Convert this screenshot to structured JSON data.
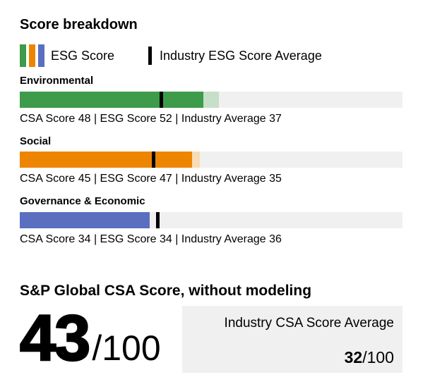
{
  "title": "Score breakdown",
  "legend": {
    "esg_label": "ESG Score",
    "industry_label": "Industry ESG Score Average"
  },
  "colors": {
    "green": "#3d9b4a",
    "green_light": "#c6dfc8",
    "orange": "#ee8500",
    "orange_light": "#f8dcb4",
    "blue": "#5a6fc0",
    "track": "#f0f0f0",
    "tick": "#000000",
    "box_bg": "#f0f0f0"
  },
  "chart_data": {
    "type": "bar",
    "title": "Score breakdown",
    "max": 100,
    "categories": [
      "Environmental",
      "Social",
      "Governance & Economic"
    ],
    "series": [
      {
        "name": "CSA Score",
        "values": [
          48,
          45,
          34
        ]
      },
      {
        "name": "ESG Score",
        "values": [
          52,
          47,
          34
        ]
      },
      {
        "name": "Industry Average",
        "values": [
          37,
          35,
          36
        ]
      }
    ],
    "legend_entries": [
      "ESG Score",
      "Industry ESG Score Average"
    ],
    "layout": "horizontal stacked bars with black industry-average tick marks, gray 0-100 track"
  },
  "sections": [
    {
      "label": "Environmental",
      "csa": 48,
      "esg": 52,
      "industry": 37,
      "color": "#3d9b4a",
      "color_light": "#c6dfc8",
      "caption": "CSA Score 48 | ESG Score 52 | Industry Average 37"
    },
    {
      "label": "Social",
      "csa": 45,
      "esg": 47,
      "industry": 35,
      "color": "#ee8500",
      "color_light": "#f8dcb4",
      "caption": "CSA Score 45 | ESG Score 47 | Industry Average 35"
    },
    {
      "label": "Governance & Economic",
      "csa": 34,
      "esg": 34,
      "industry": 36,
      "color": "#5a6fc0",
      "color_light": "#5a6fc0",
      "caption": "CSA Score 34 | ESG Score 34 | Industry Average 36"
    }
  ],
  "summary": {
    "heading": "S&P Global CSA Score, without modeling",
    "score": "43",
    "score_suffix": "/100",
    "industry_box": {
      "label": "Industry CSA Score Average",
      "value": "32",
      "suffix": "/100"
    }
  }
}
